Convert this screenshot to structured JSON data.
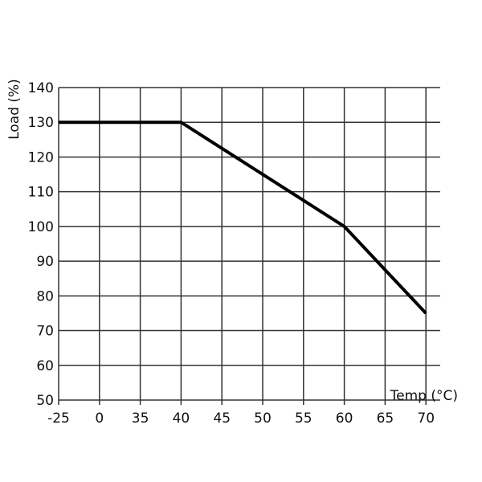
{
  "chart_data": {
    "type": "line",
    "title": "",
    "xlabel": "Temp (°C)",
    "ylabel": "Load (%)",
    "categories": [
      "-25",
      "0",
      "35",
      "40",
      "45",
      "50",
      "55",
      "60",
      "65",
      "70"
    ],
    "yticks": [
      "50",
      "60",
      "70",
      "80",
      "90",
      "100",
      "110",
      "120",
      "130",
      "140"
    ],
    "ylim": [
      50,
      140
    ],
    "grid": true,
    "legend": "none",
    "series": [
      {
        "x": [
          "-25",
          "40",
          "60",
          "70"
        ],
        "y": [
          130,
          130,
          100,
          75
        ],
        "color": "#000000"
      }
    ]
  }
}
